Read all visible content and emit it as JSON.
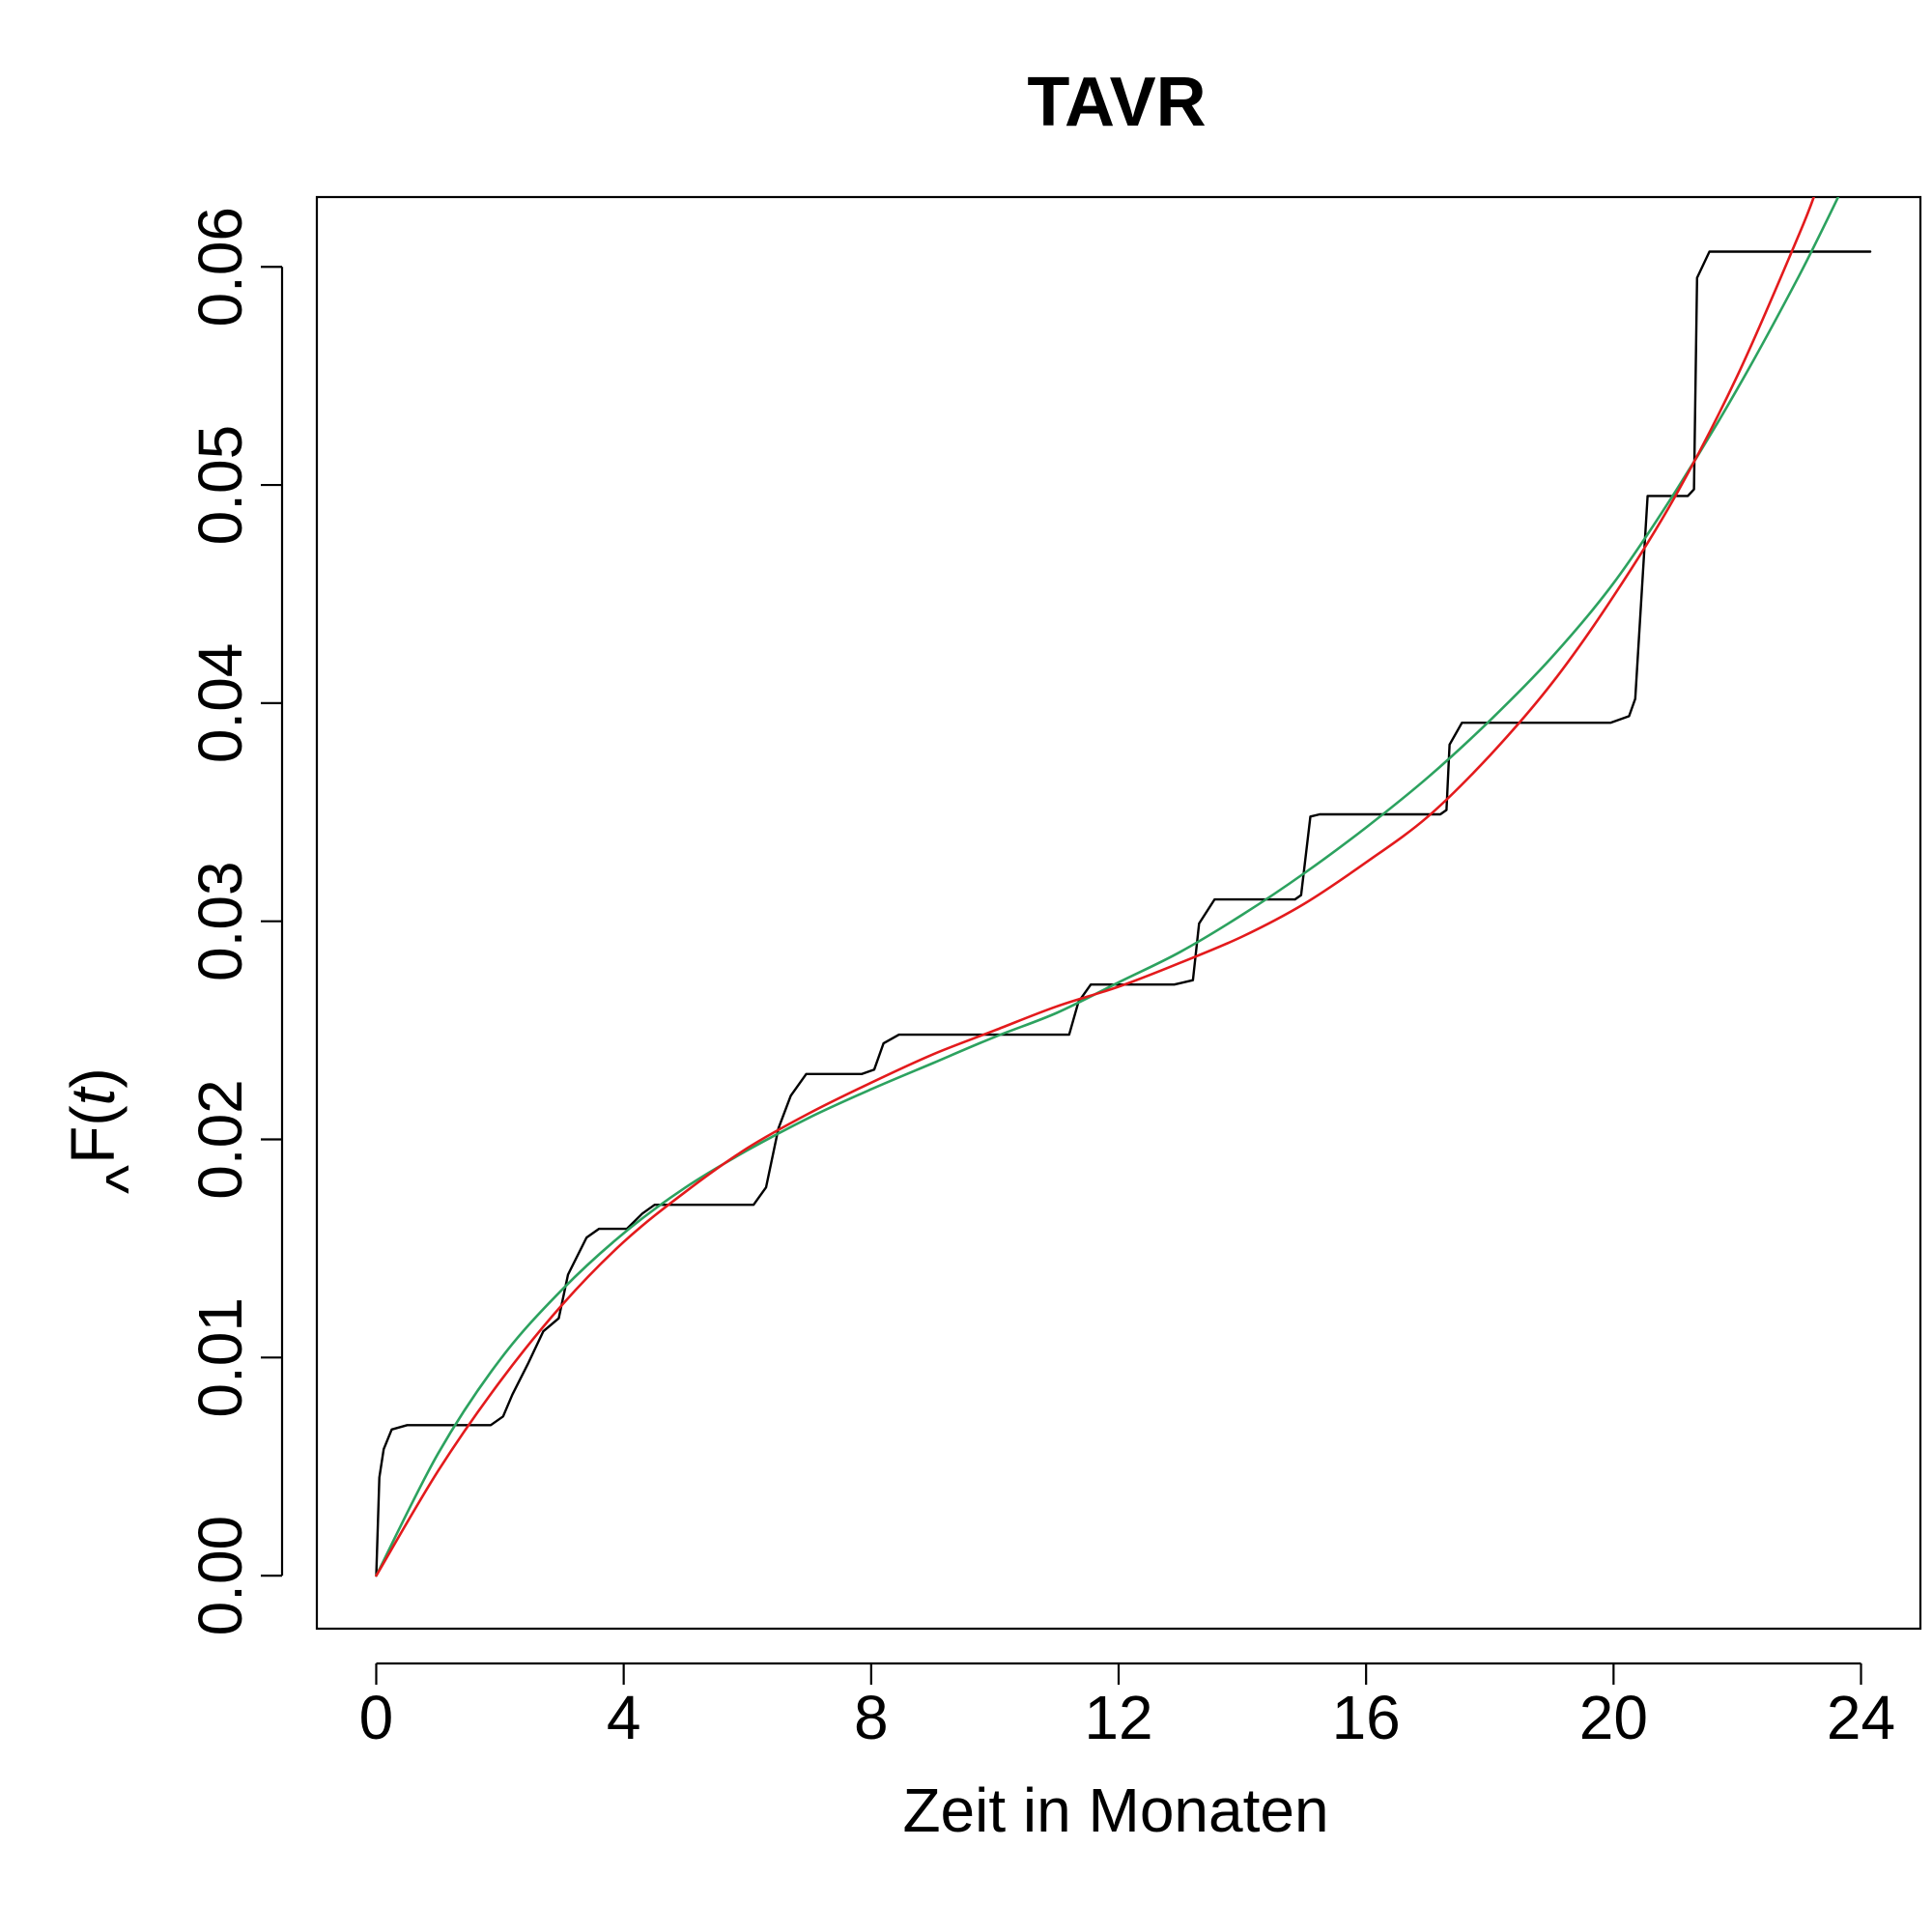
{
  "chart_data": {
    "type": "line",
    "title": "TAVR",
    "xlabel": "Zeit in Monaten",
    "ylabel": {
      "hat": "^",
      "main": "F(",
      "var": "t",
      "close": ")"
    },
    "xlim": [
      -0.96,
      24.96
    ],
    "ylim": [
      -0.00243,
      0.0632
    ],
    "x_ticks": [
      0,
      4,
      8,
      12,
      16,
      20,
      24
    ],
    "x_tick_labels": [
      "0",
      "4",
      "8",
      "12",
      "16",
      "20",
      "24"
    ],
    "y_ticks": [
      0.0,
      0.01,
      0.02,
      0.03,
      0.04,
      0.05,
      0.06
    ],
    "y_tick_labels": [
      "0.00",
      "0.01",
      "0.02",
      "0.03",
      "0.04",
      "0.05",
      "0.06"
    ],
    "grid": false,
    "legend": "none",
    "series": [
      {
        "color": "#000000",
        "style": "step",
        "points": [
          [
            0.0,
            0.0
          ],
          [
            0.05,
            0.0045
          ],
          [
            0.12,
            0.0058
          ],
          [
            0.25,
            0.0067
          ],
          [
            0.5,
            0.0069
          ],
          [
            1.85,
            0.0069
          ],
          [
            2.05,
            0.0073
          ],
          [
            2.2,
            0.0083
          ],
          [
            2.45,
            0.0097
          ],
          [
            2.7,
            0.0112
          ],
          [
            2.95,
            0.0118
          ],
          [
            3.1,
            0.0138
          ],
          [
            3.4,
            0.0155
          ],
          [
            3.6,
            0.0159
          ],
          [
            4.05,
            0.0159
          ],
          [
            4.3,
            0.0166
          ],
          [
            4.5,
            0.017
          ],
          [
            6.1,
            0.017
          ],
          [
            6.3,
            0.0178
          ],
          [
            6.5,
            0.0205
          ],
          [
            6.7,
            0.022
          ],
          [
            6.95,
            0.023
          ],
          [
            7.85,
            0.023
          ],
          [
            8.05,
            0.0232
          ],
          [
            8.2,
            0.0244
          ],
          [
            8.45,
            0.0248
          ],
          [
            11.2,
            0.0248
          ],
          [
            11.35,
            0.0263
          ],
          [
            11.55,
            0.0271
          ],
          [
            12.9,
            0.0271
          ],
          [
            13.2,
            0.0273
          ],
          [
            13.3,
            0.0299
          ],
          [
            13.55,
            0.031
          ],
          [
            14.85,
            0.031
          ],
          [
            14.95,
            0.0312
          ],
          [
            15.1,
            0.0348
          ],
          [
            15.25,
            0.0349
          ],
          [
            17.2,
            0.0349
          ],
          [
            17.3,
            0.0351
          ],
          [
            17.35,
            0.0381
          ],
          [
            17.55,
            0.0391
          ],
          [
            19.95,
            0.0391
          ],
          [
            20.25,
            0.0394
          ],
          [
            20.35,
            0.0402
          ],
          [
            20.55,
            0.0495
          ],
          [
            21.2,
            0.0495
          ],
          [
            21.3,
            0.0498
          ],
          [
            21.35,
            0.0595
          ],
          [
            21.55,
            0.0607
          ],
          [
            24.15,
            0.0607
          ]
        ]
      },
      {
        "color": "#2ca25f",
        "style": "smooth",
        "points": [
          [
            0.0,
            0.0
          ],
          [
            1.0,
            0.0056
          ],
          [
            2.0,
            0.0099
          ],
          [
            3.0,
            0.0131
          ],
          [
            4.0,
            0.0157
          ],
          [
            5.0,
            0.0178
          ],
          [
            6.0,
            0.0195
          ],
          [
            7.0,
            0.021
          ],
          [
            8.0,
            0.0223
          ],
          [
            9.0,
            0.0235
          ],
          [
            10.0,
            0.0247
          ],
          [
            11.0,
            0.0258
          ],
          [
            12.0,
            0.0272
          ],
          [
            13.0,
            0.0286
          ],
          [
            14.0,
            0.0303
          ],
          [
            15.0,
            0.0322
          ],
          [
            16.0,
            0.0343
          ],
          [
            17.0,
            0.0366
          ],
          [
            18.0,
            0.0392
          ],
          [
            19.0,
            0.0421
          ],
          [
            20.0,
            0.0455
          ],
          [
            21.0,
            0.0497
          ],
          [
            22.0,
            0.0544
          ],
          [
            23.0,
            0.0596
          ],
          [
            23.7,
            0.0636
          ]
        ]
      },
      {
        "color": "#e31a1c",
        "style": "smooth",
        "points": [
          [
            0.0,
            0.0
          ],
          [
            1.0,
            0.0048
          ],
          [
            2.0,
            0.0089
          ],
          [
            3.0,
            0.0124
          ],
          [
            4.0,
            0.0153
          ],
          [
            5.0,
            0.0176
          ],
          [
            6.0,
            0.0196
          ],
          [
            7.0,
            0.0212
          ],
          [
            8.0,
            0.0226
          ],
          [
            9.0,
            0.0239
          ],
          [
            10.0,
            0.025
          ],
          [
            11.0,
            0.0261
          ],
          [
            12.0,
            0.027
          ],
          [
            13.0,
            0.0281
          ],
          [
            14.0,
            0.0293
          ],
          [
            15.0,
            0.0308
          ],
          [
            16.0,
            0.0327
          ],
          [
            17.0,
            0.0348
          ],
          [
            18.0,
            0.0376
          ],
          [
            19.0,
            0.0409
          ],
          [
            20.0,
            0.0449
          ],
          [
            21.0,
            0.0495
          ],
          [
            22.0,
            0.055
          ],
          [
            23.0,
            0.0615
          ],
          [
            23.3,
            0.0637
          ]
        ]
      }
    ]
  }
}
